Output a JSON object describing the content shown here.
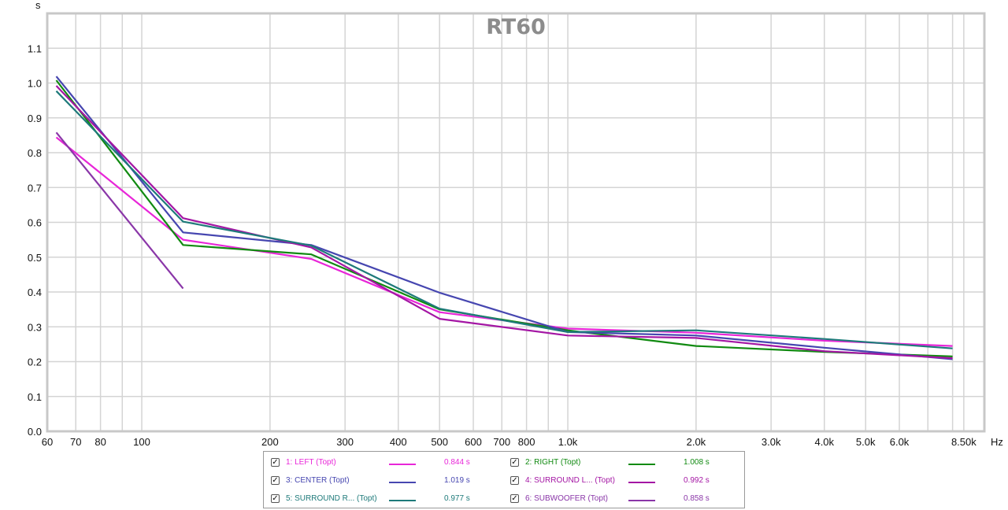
{
  "chart_data": {
    "type": "line",
    "title": "RT60",
    "ylabel": "s",
    "xlabel": "Hz",
    "x_scale": "log",
    "xlim": [
      60,
      9500
    ],
    "ylim": [
      0,
      1.2
    ],
    "grid": true,
    "x_ticks": [
      {
        "v": 60,
        "label": "60"
      },
      {
        "v": 70,
        "label": "70"
      },
      {
        "v": 80,
        "label": "80"
      },
      {
        "v": 100,
        "label": "100"
      },
      {
        "v": 200,
        "label": "200"
      },
      {
        "v": 300,
        "label": "300"
      },
      {
        "v": 400,
        "label": "400"
      },
      {
        "v": 500,
        "label": "500"
      },
      {
        "v": 600,
        "label": "600"
      },
      {
        "v": 700,
        "label": "700"
      },
      {
        "v": 800,
        "label": "800"
      },
      {
        "v": 1000,
        "label": "1.0k"
      },
      {
        "v": 2000,
        "label": "2.0k"
      },
      {
        "v": 3000,
        "label": "3.0k"
      },
      {
        "v": 4000,
        "label": "4.0k"
      },
      {
        "v": 5000,
        "label": "5.0k"
      },
      {
        "v": 6000,
        "label": "6.0k"
      },
      {
        "v": 8500,
        "label": "8.50k"
      }
    ],
    "x_minor_grid": [
      90,
      900,
      7000,
      8000
    ],
    "y_ticks": [
      {
        "v": 0.0,
        "label": "0.0"
      },
      {
        "v": 0.1,
        "label": "0.1"
      },
      {
        "v": 0.2,
        "label": "0.2"
      },
      {
        "v": 0.3,
        "label": "0.3"
      },
      {
        "v": 0.4,
        "label": "0.4"
      },
      {
        "v": 0.5,
        "label": "0.5"
      },
      {
        "v": 0.6,
        "label": "0.6"
      },
      {
        "v": 0.7,
        "label": "0.7"
      },
      {
        "v": 0.8,
        "label": "0.8"
      },
      {
        "v": 0.9,
        "label": "0.9"
      },
      {
        "v": 1.0,
        "label": "1.0"
      },
      {
        "v": 1.1,
        "label": "1.1"
      }
    ],
    "series": [
      {
        "name": "1: LEFT (Topt)",
        "value_text": "0.844 s",
        "color": "#e826d8",
        "points": [
          [
            63,
            0.844
          ],
          [
            125,
            0.55
          ],
          [
            250,
            0.495
          ],
          [
            500,
            0.342
          ],
          [
            1000,
            0.295
          ],
          [
            2000,
            0.283
          ],
          [
            4000,
            0.26
          ],
          [
            8000,
            0.245
          ]
        ]
      },
      {
        "name": "2: RIGHT (Topt)",
        "value_text": "1.008 s",
        "color": "#118a11",
        "points": [
          [
            63,
            1.008
          ],
          [
            125,
            0.535
          ],
          [
            250,
            0.508
          ],
          [
            500,
            0.35
          ],
          [
            1000,
            0.29
          ],
          [
            2000,
            0.245
          ],
          [
            4000,
            0.228
          ],
          [
            8000,
            0.215
          ]
        ]
      },
      {
        "name": "3: CENTER (Topt)",
        "value_text": "1.019 s",
        "color": "#4646b0",
        "points": [
          [
            63,
            1.019
          ],
          [
            125,
            0.571
          ],
          [
            250,
            0.535
          ],
          [
            500,
            0.398
          ],
          [
            1000,
            0.285
          ],
          [
            2000,
            0.275
          ],
          [
            4000,
            0.24
          ],
          [
            8000,
            0.207
          ]
        ]
      },
      {
        "name": "4: SURROUND L... (Topt)",
        "value_text": "0.992 s",
        "color": "#a416a4",
        "points": [
          [
            63,
            0.992
          ],
          [
            125,
            0.612
          ],
          [
            250,
            0.528
          ],
          [
            500,
            0.323
          ],
          [
            1000,
            0.275
          ],
          [
            2000,
            0.268
          ],
          [
            4000,
            0.23
          ],
          [
            8000,
            0.21
          ]
        ]
      },
      {
        "name": "5: SURROUND R... (Topt)",
        "value_text": "0.977 s",
        "color": "#1e7a7a",
        "points": [
          [
            63,
            0.977
          ],
          [
            125,
            0.602
          ],
          [
            250,
            0.533
          ],
          [
            500,
            0.352
          ],
          [
            1000,
            0.285
          ],
          [
            2000,
            0.29
          ],
          [
            4000,
            0.265
          ],
          [
            8000,
            0.238
          ]
        ]
      },
      {
        "name": "6: SUBWOOFER (Topt)",
        "value_text": "0.858 s",
        "color": "#8a36a8",
        "points": [
          [
            63,
            0.858
          ],
          [
            125,
            0.41
          ]
        ]
      }
    ]
  }
}
